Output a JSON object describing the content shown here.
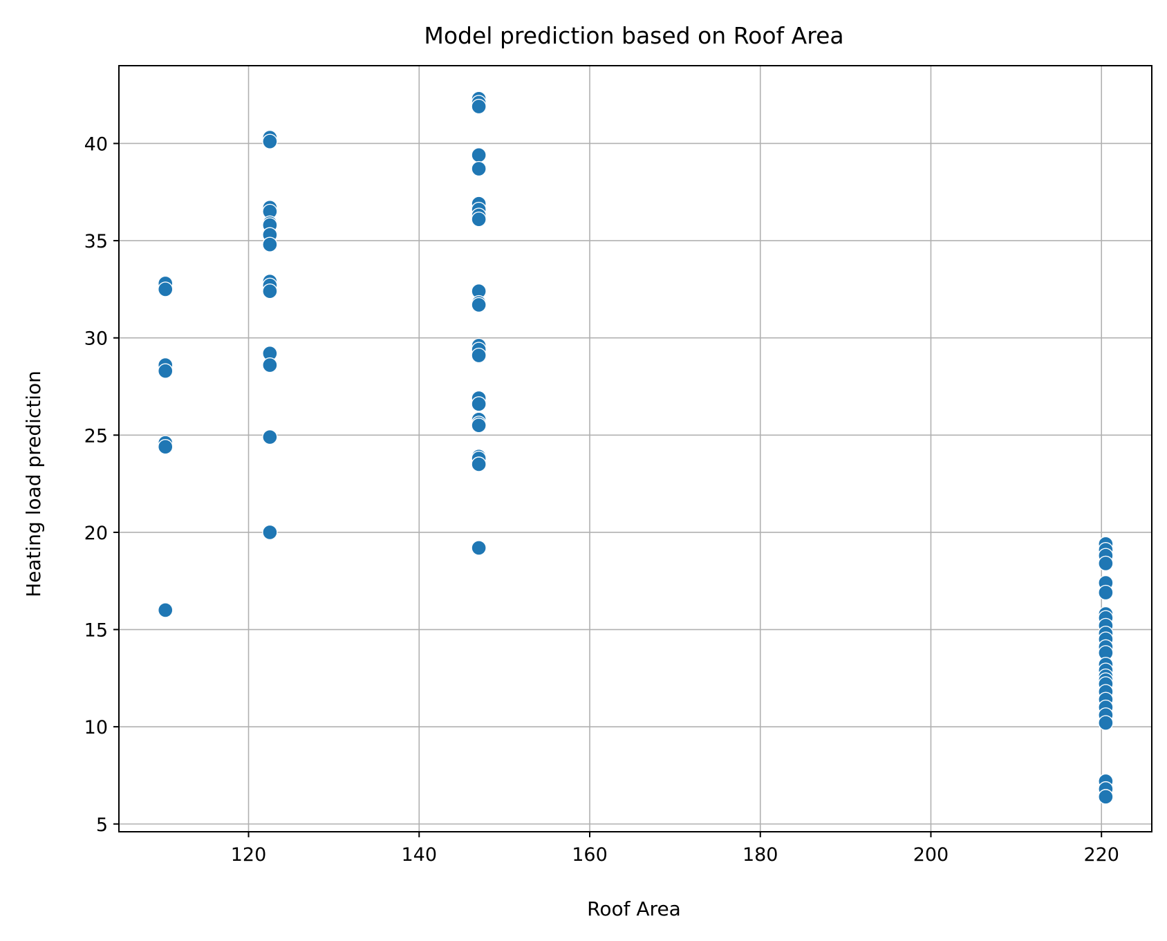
{
  "chart_data": {
    "type": "scatter",
    "title": "Model prediction based on Roof Area",
    "xlabel": "Roof Area",
    "ylabel": "Heating load prediction",
    "xlim": [
      104.8,
      225.9
    ],
    "ylim": [
      4.6,
      44.0
    ],
    "xticks": [
      120,
      140,
      160,
      180,
      200,
      220
    ],
    "yticks": [
      5,
      10,
      15,
      20,
      25,
      30,
      35,
      40
    ],
    "grid": true,
    "color": "#1f77b4",
    "points": [
      {
        "x": 110.25,
        "y": 32.8
      },
      {
        "x": 110.25,
        "y": 32.5
      },
      {
        "x": 110.25,
        "y": 28.6
      },
      {
        "x": 110.25,
        "y": 28.3
      },
      {
        "x": 110.25,
        "y": 24.6
      },
      {
        "x": 110.25,
        "y": 24.4
      },
      {
        "x": 110.25,
        "y": 16.0
      },
      {
        "x": 122.5,
        "y": 40.3
      },
      {
        "x": 122.5,
        "y": 40.1
      },
      {
        "x": 122.5,
        "y": 36.7
      },
      {
        "x": 122.5,
        "y": 36.5
      },
      {
        "x": 122.5,
        "y": 35.9
      },
      {
        "x": 122.5,
        "y": 35.8
      },
      {
        "x": 122.5,
        "y": 35.3
      },
      {
        "x": 122.5,
        "y": 34.8
      },
      {
        "x": 122.5,
        "y": 32.9
      },
      {
        "x": 122.5,
        "y": 32.7
      },
      {
        "x": 122.5,
        "y": 32.4
      },
      {
        "x": 122.5,
        "y": 29.2
      },
      {
        "x": 122.5,
        "y": 28.6
      },
      {
        "x": 122.5,
        "y": 24.9
      },
      {
        "x": 122.5,
        "y": 20.0
      },
      {
        "x": 147.0,
        "y": 42.3
      },
      {
        "x": 147.0,
        "y": 42.1
      },
      {
        "x": 147.0,
        "y": 41.9
      },
      {
        "x": 147.0,
        "y": 39.4
      },
      {
        "x": 147.0,
        "y": 38.7
      },
      {
        "x": 147.0,
        "y": 36.9
      },
      {
        "x": 147.0,
        "y": 36.6
      },
      {
        "x": 147.0,
        "y": 36.3
      },
      {
        "x": 147.0,
        "y": 36.1
      },
      {
        "x": 147.0,
        "y": 32.4
      },
      {
        "x": 147.0,
        "y": 31.8
      },
      {
        "x": 147.0,
        "y": 31.7
      },
      {
        "x": 147.0,
        "y": 29.6
      },
      {
        "x": 147.0,
        "y": 29.4
      },
      {
        "x": 147.0,
        "y": 29.1
      },
      {
        "x": 147.0,
        "y": 26.9
      },
      {
        "x": 147.0,
        "y": 26.6
      },
      {
        "x": 147.0,
        "y": 25.8
      },
      {
        "x": 147.0,
        "y": 25.6
      },
      {
        "x": 147.0,
        "y": 25.5
      },
      {
        "x": 147.0,
        "y": 23.9
      },
      {
        "x": 147.0,
        "y": 23.8
      },
      {
        "x": 147.0,
        "y": 23.5
      },
      {
        "x": 147.0,
        "y": 19.2
      },
      {
        "x": 220.5,
        "y": 19.4
      },
      {
        "x": 220.5,
        "y": 19.1
      },
      {
        "x": 220.5,
        "y": 18.8
      },
      {
        "x": 220.5,
        "y": 18.4
      },
      {
        "x": 220.5,
        "y": 17.4
      },
      {
        "x": 220.5,
        "y": 16.9
      },
      {
        "x": 220.5,
        "y": 15.8
      },
      {
        "x": 220.5,
        "y": 15.6
      },
      {
        "x": 220.5,
        "y": 15.2
      },
      {
        "x": 220.5,
        "y": 14.8
      },
      {
        "x": 220.5,
        "y": 14.5
      },
      {
        "x": 220.5,
        "y": 14.1
      },
      {
        "x": 220.5,
        "y": 13.8
      },
      {
        "x": 220.5,
        "y": 13.2
      },
      {
        "x": 220.5,
        "y": 12.9
      },
      {
        "x": 220.5,
        "y": 12.6
      },
      {
        "x": 220.5,
        "y": 12.4
      },
      {
        "x": 220.5,
        "y": 12.2
      },
      {
        "x": 220.5,
        "y": 11.8
      },
      {
        "x": 220.5,
        "y": 11.4
      },
      {
        "x": 220.5,
        "y": 11.0
      },
      {
        "x": 220.5,
        "y": 10.6
      },
      {
        "x": 220.5,
        "y": 10.2
      },
      {
        "x": 220.5,
        "y": 7.2
      },
      {
        "x": 220.5,
        "y": 6.8
      },
      {
        "x": 220.5,
        "y": 6.4
      }
    ]
  }
}
